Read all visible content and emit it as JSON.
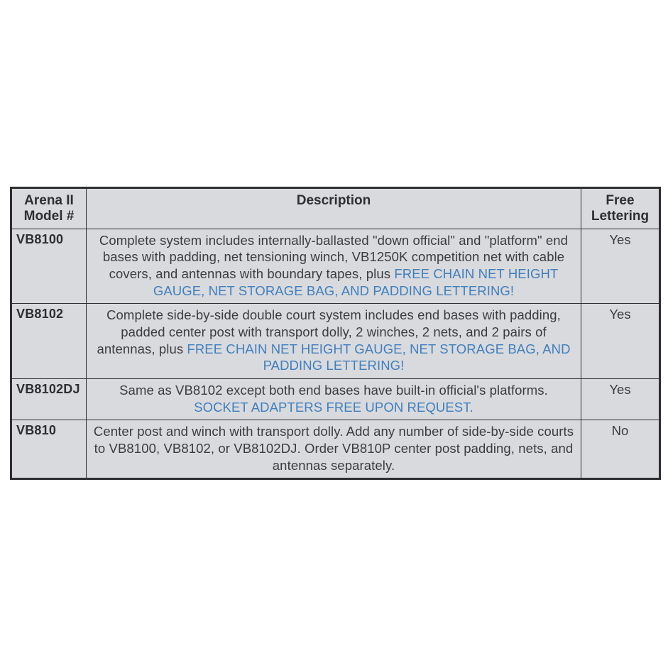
{
  "table": {
    "background_color": "#d9dadd",
    "border_color": "#2e2f31",
    "highlight_color": "#3f7fbf",
    "text_color": "#3a3c40",
    "header_color": "#2e2f31",
    "columns": {
      "model": {
        "line1": "Arena II",
        "line2": "Model #"
      },
      "description": "Description",
      "free": {
        "line1": "Free",
        "line2": "Lettering"
      }
    },
    "rows": [
      {
        "model": "VB8100",
        "desc_plain": "Complete system includes internally-ballasted \"down official\" and \"platform\" end bases with padding, net tensioning winch, VB1250K competition net with cable covers, and antennas with boundary tapes, plus ",
        "desc_highlight": "FREE CHAIN NET HEIGHT GAUGE, NET STORAGE BAG, AND PADDING LETTERING!",
        "free": "Yes"
      },
      {
        "model": "VB8102",
        "desc_plain": "Complete side-by-side double court system includes end bases with padding, padded center post with transport dolly, 2 winches, 2 nets, and 2 pairs of antennas, plus ",
        "desc_highlight": "FREE CHAIN NET HEIGHT GAUGE, NET STORAGE BAG, AND PADDING LETTERING!",
        "free": "Yes"
      },
      {
        "model": "VB8102DJ",
        "desc_plain": "Same as VB8102 except both end bases have built-in official's platforms. ",
        "desc_highlight": "SOCKET ADAPTERS FREE UPON REQUEST.",
        "free": "Yes"
      },
      {
        "model": "VB810",
        "desc_plain": "Center post and winch with transport dolly. Add any number of side-by-side courts to VB8100, VB8102, or VB8102DJ. Order VB810P center post padding, nets, and antennas separately.",
        "desc_highlight": "",
        "free": "No"
      }
    ]
  }
}
